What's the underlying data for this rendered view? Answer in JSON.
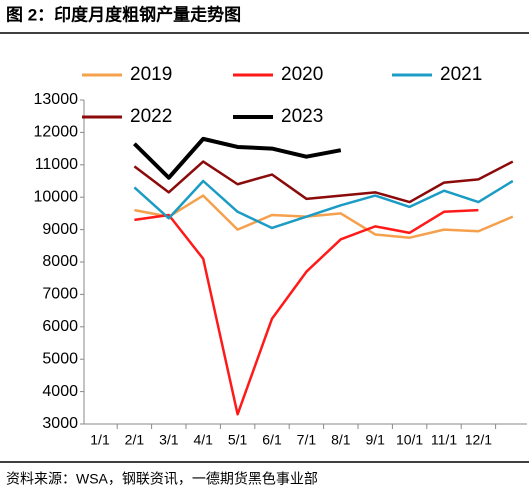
{
  "chart_data": {
    "type": "line",
    "title": "图 2：印度月度粗钢产量走势图",
    "source": "资料来源：WSA，钢联资讯，一德期货黑色事业部",
    "categories": [
      "1/1",
      "2/1",
      "3/1",
      "4/1",
      "5/1",
      "6/1",
      "7/1",
      "8/1",
      "9/1",
      "10/1",
      "11/1",
      "12/1",
      null
    ],
    "ylim": [
      3000,
      13000
    ],
    "yticks": [
      3000,
      4000,
      5000,
      6000,
      7000,
      8000,
      9000,
      10000,
      11000,
      12000,
      13000
    ],
    "series": [
      {
        "name": "2019",
        "color": "#f5a04c",
        "values": [
          null,
          9600,
          9400,
          10050,
          9000,
          9450,
          9400,
          9500,
          8850,
          8750,
          9000,
          8950,
          9400
        ]
      },
      {
        "name": "2020",
        "color": "#ff1a1a",
        "values": [
          null,
          9300,
          9450,
          8100,
          3300,
          6250,
          7700,
          8700,
          9100,
          8900,
          9550,
          9600,
          null
        ]
      },
      {
        "name": "2021",
        "color": "#1c9cc4",
        "values": [
          null,
          10300,
          9350,
          10500,
          9550,
          9050,
          9400,
          9750,
          10050,
          9700,
          10200,
          9850,
          10500
        ]
      },
      {
        "name": "2022",
        "color": "#8b0a0a",
        "values": [
          null,
          10950,
          10150,
          11100,
          10400,
          10700,
          9950,
          10050,
          10150,
          9850,
          10450,
          10550,
          11100
        ]
      },
      {
        "name": "2023",
        "color": "#000000",
        "values": [
          null,
          11650,
          10600,
          11800,
          11550,
          11500,
          11250,
          11450,
          null,
          null,
          null,
          null,
          null
        ]
      }
    ]
  }
}
